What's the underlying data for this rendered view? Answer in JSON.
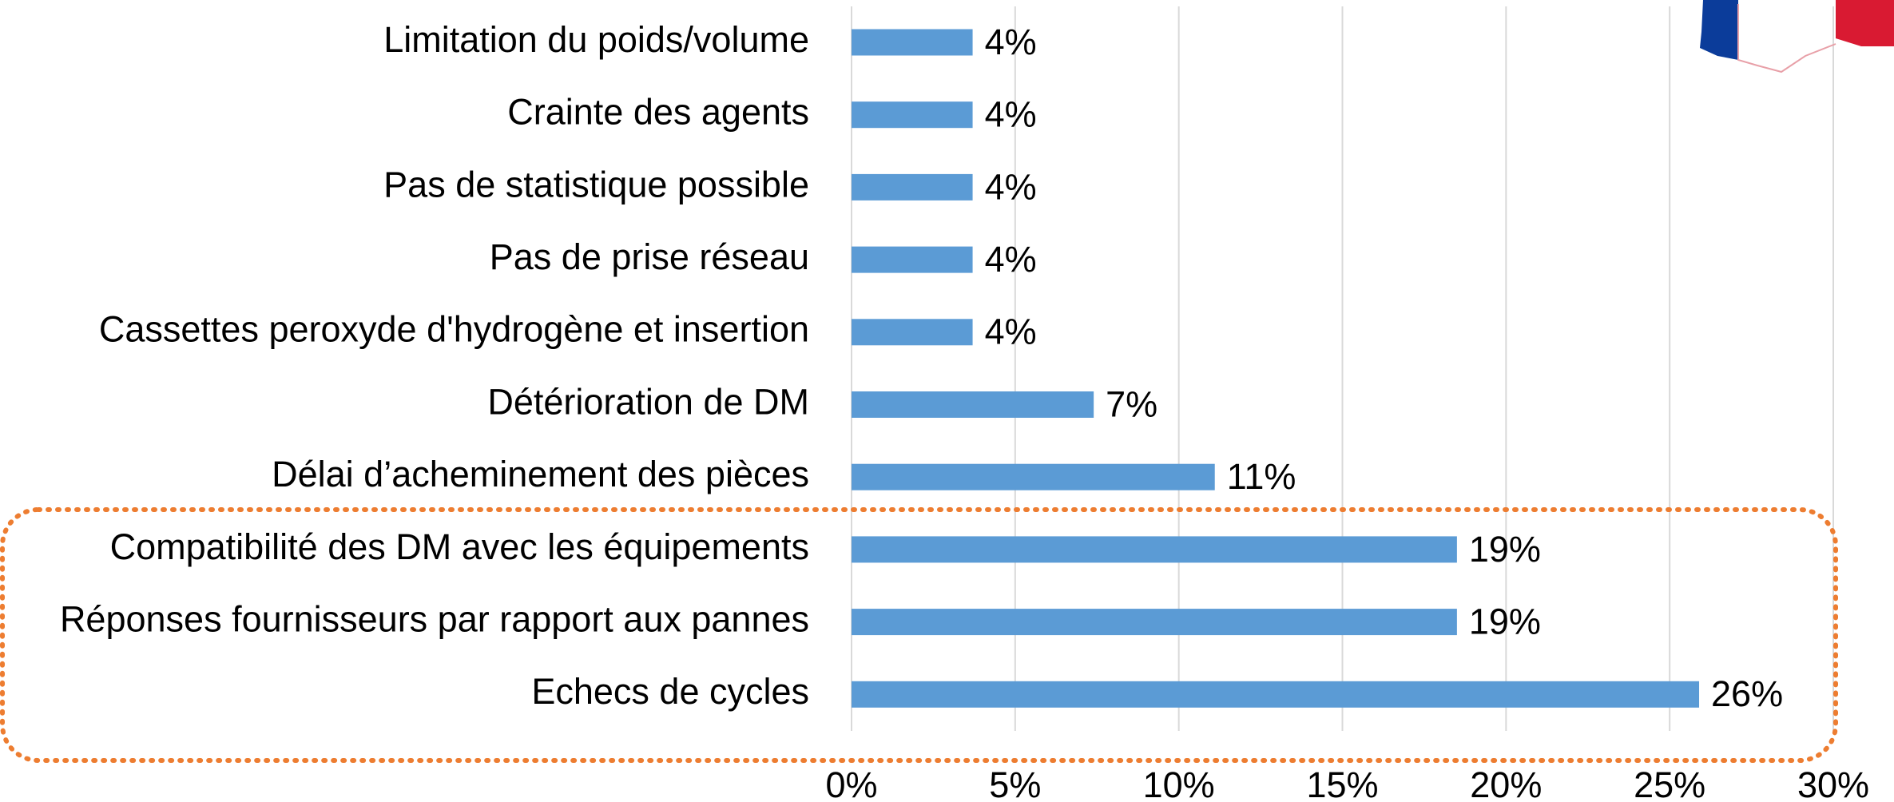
{
  "chart_data": {
    "type": "bar",
    "orientation": "horizontal",
    "categories": [
      "Limitation du poids/volume",
      "Crainte des agents",
      "Pas de statistique possible",
      "Pas de prise réseau",
      "Cassettes peroxyde d'hydrogène et insertion",
      "Détérioration de DM",
      "Délai d’acheminement des pièces",
      "Compatibilité des DM avec les équipements",
      "Réponses fournisseurs par rapport aux pannes",
      "Echecs de cycles"
    ],
    "values": [
      3.7,
      3.7,
      3.7,
      3.7,
      3.7,
      7.4,
      11.1,
      18.5,
      18.5,
      25.9
    ],
    "value_labels": [
      "4%",
      "4%",
      "4%",
      "4%",
      "4%",
      "7%",
      "11%",
      "19%",
      "19%",
      "26%"
    ],
    "color": "#5b9bd5",
    "xlim": [
      0,
      30
    ],
    "xticks": [
      {
        "value": 0,
        "label": "0%"
      },
      {
        "value": 5,
        "label": "5%"
      },
      {
        "value": 10,
        "label": "10%"
      },
      {
        "value": 15,
        "label": "15%"
      },
      {
        "value": 20,
        "label": "20%"
      },
      {
        "value": 25,
        "label": "25%"
      },
      {
        "value": 30,
        "label": "30%"
      }
    ],
    "grid": true
  }
}
